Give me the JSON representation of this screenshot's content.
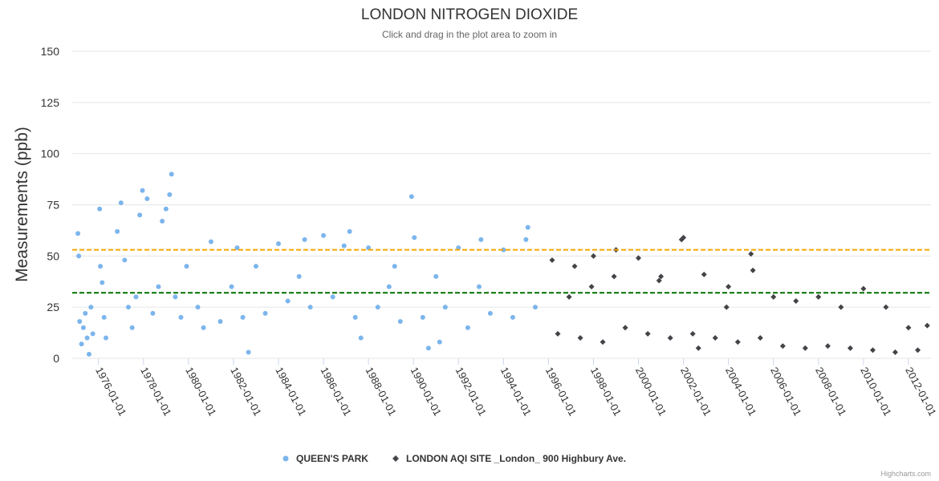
{
  "chart_data": {
    "type": "scatter",
    "title": "LONDON NITROGEN DIOXIDE",
    "subtitle": "Click and drag in the plot area to zoom in",
    "ylabel": "Measurements (ppb)",
    "xlabel": "",
    "ylim": [
      0,
      150
    ],
    "yticks": [
      "0",
      "25",
      "50",
      "75",
      "100",
      "125",
      "150"
    ],
    "xlim": [
      "1974-11-01",
      "2013-01-01"
    ],
    "xticks": [
      "1976-01-01",
      "1978-01-01",
      "1980-01-01",
      "1982-01-01",
      "1984-01-01",
      "1986-01-01",
      "1988-01-01",
      "1990-01-01",
      "1992-01-01",
      "1994-01-01",
      "1996-01-01",
      "1998-01-01",
      "2000-01-01",
      "2002-01-01",
      "2004-01-01",
      "2006-01-01",
      "2008-01-01",
      "2010-01-01",
      "2012-01-01"
    ],
    "grid": true,
    "legend_position": "bottom-center",
    "reference_lines": [
      {
        "y": 53,
        "color": "#f7a600",
        "style": "dashed"
      },
      {
        "y": 32,
        "color": "#007000",
        "style": "dashed"
      }
    ],
    "series": [
      {
        "name": "QUEEN'S PARK",
        "color": "#7cb5ec",
        "marker": "circle",
        "points": [
          [
            "1975-02-01",
            61
          ],
          [
            "1975-02-15",
            50
          ],
          [
            "1975-03-01",
            18
          ],
          [
            "1975-04-01",
            7
          ],
          [
            "1975-05-01",
            15
          ],
          [
            "1975-06-01",
            22
          ],
          [
            "1975-07-01",
            10
          ],
          [
            "1975-08-01",
            2
          ],
          [
            "1975-09-01",
            25
          ],
          [
            "1975-10-01",
            12
          ],
          [
            "1976-01-20",
            73
          ],
          [
            "1976-02-01",
            45
          ],
          [
            "1976-03-01",
            37
          ],
          [
            "1976-04-01",
            20
          ],
          [
            "1976-05-01",
            10
          ],
          [
            "1976-11-01",
            62
          ],
          [
            "1977-01-01",
            76
          ],
          [
            "1977-03-01",
            48
          ],
          [
            "1977-05-01",
            25
          ],
          [
            "1977-07-01",
            15
          ],
          [
            "1977-09-01",
            30
          ],
          [
            "1977-11-01",
            70
          ],
          [
            "1977-12-15",
            82
          ],
          [
            "1978-03-01",
            78
          ],
          [
            "1978-06-01",
            22
          ],
          [
            "1978-09-01",
            35
          ],
          [
            "1978-11-01",
            67
          ],
          [
            "1979-01-01",
            73
          ],
          [
            "1979-03-01",
            80
          ],
          [
            "1979-04-01",
            90
          ],
          [
            "1979-06-01",
            30
          ],
          [
            "1979-09-01",
            20
          ],
          [
            "1979-12-01",
            45
          ],
          [
            "1980-06-01",
            25
          ],
          [
            "1980-09-01",
            15
          ],
          [
            "1981-01-01",
            57
          ],
          [
            "1981-06-01",
            18
          ],
          [
            "1981-12-01",
            35
          ],
          [
            "1982-03-01",
            54
          ],
          [
            "1982-06-01",
            20
          ],
          [
            "1982-09-01",
            3
          ],
          [
            "1983-01-01",
            45
          ],
          [
            "1983-06-01",
            22
          ],
          [
            "1984-01-01",
            56
          ],
          [
            "1984-06-01",
            28
          ],
          [
            "1984-12-01",
            40
          ],
          [
            "1985-03-01",
            58
          ],
          [
            "1985-06-01",
            25
          ],
          [
            "1986-01-01",
            60
          ],
          [
            "1986-06-01",
            30
          ],
          [
            "1986-12-01",
            55
          ],
          [
            "1987-03-01",
            62
          ],
          [
            "1987-06-01",
            20
          ],
          [
            "1987-09-01",
            10
          ],
          [
            "1988-01-01",
            54
          ],
          [
            "1988-06-01",
            25
          ],
          [
            "1988-12-01",
            35
          ],
          [
            "1989-03-01",
            45
          ],
          [
            "1989-06-01",
            18
          ],
          [
            "1989-12-01",
            79
          ],
          [
            "1990-01-15",
            59
          ],
          [
            "1990-06-01",
            20
          ],
          [
            "1990-09-01",
            5
          ],
          [
            "1991-01-01",
            40
          ],
          [
            "1991-03-01",
            8
          ],
          [
            "1991-06-01",
            25
          ],
          [
            "1992-01-01",
            54
          ],
          [
            "1992-06-01",
            15
          ],
          [
            "1992-12-01",
            35
          ],
          [
            "1993-01-01",
            58
          ],
          [
            "1993-06-01",
            22
          ],
          [
            "1994-01-01",
            53
          ],
          [
            "1994-06-01",
            20
          ],
          [
            "1995-01-01",
            58
          ],
          [
            "1995-02-01",
            64
          ],
          [
            "1995-06-01",
            25
          ]
        ]
      },
      {
        "name": "LONDON AQI SITE _London_ 900 Highbury Ave.",
        "color": "#434348",
        "marker": "diamond",
        "points": [
          [
            "1996-03-01",
            48
          ],
          [
            "1996-06-01",
            12
          ],
          [
            "1996-12-01",
            30
          ],
          [
            "1997-03-01",
            45
          ],
          [
            "1997-06-01",
            10
          ],
          [
            "1997-12-01",
            35
          ],
          [
            "1998-01-01",
            50
          ],
          [
            "1998-06-01",
            8
          ],
          [
            "1998-12-01",
            40
          ],
          [
            "1999-01-01",
            53
          ],
          [
            "1999-06-01",
            15
          ],
          [
            "2000-01-01",
            49
          ],
          [
            "2000-06-01",
            12
          ],
          [
            "2000-12-01",
            38
          ],
          [
            "2001-01-01",
            40
          ],
          [
            "2001-06-01",
            10
          ],
          [
            "2001-12-01",
            58
          ],
          [
            "2002-01-01",
            59
          ],
          [
            "2002-06-01",
            12
          ],
          [
            "2002-09-01",
            5
          ],
          [
            "2002-12-01",
            41
          ],
          [
            "2003-06-01",
            10
          ],
          [
            "2003-12-01",
            25
          ],
          [
            "2004-01-01",
            35
          ],
          [
            "2004-06-01",
            8
          ],
          [
            "2005-01-01",
            51
          ],
          [
            "2005-02-01",
            43
          ],
          [
            "2005-06-01",
            10
          ],
          [
            "2006-01-01",
            30
          ],
          [
            "2006-06-01",
            6
          ],
          [
            "2007-01-01",
            28
          ],
          [
            "2007-06-01",
            5
          ],
          [
            "2008-01-01",
            30
          ],
          [
            "2008-06-01",
            6
          ],
          [
            "2009-01-01",
            25
          ],
          [
            "2009-06-01",
            5
          ],
          [
            "2010-01-01",
            34
          ],
          [
            "2010-06-01",
            4
          ],
          [
            "2011-01-01",
            25
          ],
          [
            "2011-06-01",
            3
          ],
          [
            "2012-01-01",
            15
          ],
          [
            "2012-06-01",
            4
          ],
          [
            "2012-11-01",
            16
          ]
        ]
      }
    ]
  },
  "credits": "Highcharts.com"
}
